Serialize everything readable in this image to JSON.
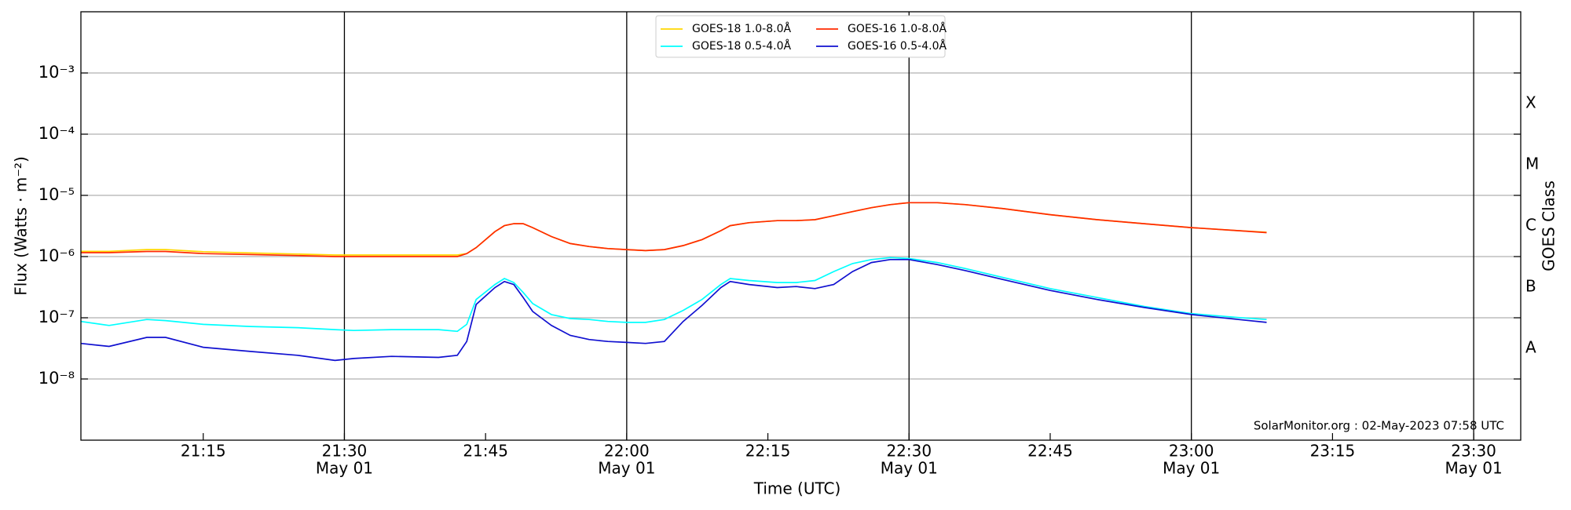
{
  "chart_data": {
    "type": "line",
    "y_label": "Flux (Watts · m⁻²)",
    "x_label": "Time (UTC)",
    "y2_label": "GOES Class",
    "annotation": "SolarMonitor.org : 02-May-2023 07:58 UTC",
    "log_y": true,
    "grid": true,
    "legend_position": "top-center",
    "classes": [
      "A",
      "B",
      "C",
      "M",
      "X"
    ],
    "xlim": [
      "21:02",
      "23:35"
    ],
    "ylim": [
      1e-09,
      0.01
    ],
    "xticks": [
      "21:15",
      "21:30",
      "21:45",
      "22:00",
      "22:15",
      "22:30",
      "22:45",
      "23:00",
      "23:15",
      "23:30"
    ],
    "xtick_dates": [
      null,
      "May 01",
      null,
      "May 01",
      null,
      "May 01",
      null,
      "May 01",
      null,
      "May 01"
    ],
    "yticks": [
      {
        "value": 1e-08,
        "label": "10⁻⁸"
      },
      {
        "value": 1e-07,
        "label": "10⁻⁷"
      },
      {
        "value": 1e-06,
        "label": "10⁻⁶"
      },
      {
        "value": 1e-05,
        "label": "10⁻⁵"
      },
      {
        "value": 0.0001,
        "label": "10⁻⁴"
      },
      {
        "value": 0.001,
        "label": "10⁻³"
      }
    ],
    "x": [
      "21:02",
      "21:05",
      "21:09",
      "21:11",
      "21:15",
      "21:20",
      "21:25",
      "21:29",
      "21:31",
      "21:35",
      "21:40",
      "21:42",
      "21:43",
      "21:44",
      "21:46",
      "21:47",
      "21:48",
      "21:49",
      "21:50",
      "21:52",
      "21:54",
      "21:56",
      "21:58",
      "22:00",
      "22:02",
      "22:04",
      "22:06",
      "22:08",
      "22:10",
      "22:11",
      "22:13",
      "22:16",
      "22:18",
      "22:20",
      "22:22",
      "22:24",
      "22:26",
      "22:28",
      "22:30",
      "22:33",
      "22:36",
      "22:40",
      "22:45",
      "22:50",
      "22:55",
      "23:00",
      "23:05",
      "23:08"
    ],
    "series": [
      {
        "name": "GOES-18 1.0-8.0Å",
        "color": "#ffd700",
        "values": [
          1.22e-06,
          1.22e-06,
          1.3e-06,
          1.3e-06,
          1.2e-06,
          1.15e-06,
          1.1e-06,
          1.06e-06,
          1.06e-06,
          1.06e-06,
          1.06e-06,
          1.06e-06,
          1.12e-06,
          1.4e-06,
          2.56e-06,
          3.2e-06,
          3.45e-06,
          3.45e-06,
          2.97e-06,
          2.12e-06,
          1.63e-06,
          1.46e-06,
          1.35e-06,
          1.3e-06,
          1.25e-06,
          1.3e-06,
          1.51e-06,
          1.89e-06,
          2.65e-06,
          3.2e-06,
          3.58e-06,
          3.86e-06,
          3.86e-06,
          4e-06,
          4.66e-06,
          5.42e-06,
          6.3e-06,
          7.06e-06,
          7.6e-06,
          7.6e-06,
          7.06e-06,
          6.07e-06,
          4.84e-06,
          4e-06,
          3.45e-06,
          2.97e-06,
          2.65e-06,
          2.5e-06
        ]
      },
      {
        "name": "GOES-18 0.5-4.0Å",
        "color": "#00ffff",
        "values": [
          8.7e-08,
          7.49e-08,
          9.38e-08,
          9e-08,
          7.8e-08,
          7.2e-08,
          6.9e-08,
          6.4e-08,
          6.2e-08,
          6.4e-08,
          6.4e-08,
          6e-08,
          7.8e-08,
          1.99e-07,
          3.5e-07,
          4.37e-07,
          3.76e-07,
          2.59e-07,
          1.71e-07,
          1.13e-07,
          9.7e-08,
          9.38e-08,
          8.7e-08,
          8.4e-08,
          8.4e-08,
          9.38e-08,
          1.32e-07,
          1.99e-07,
          3.5e-07,
          4.37e-07,
          4.06e-07,
          3.76e-07,
          3.76e-07,
          4.06e-07,
          5.69e-07,
          7.69e-07,
          8.93e-07,
          9.63e-07,
          9.28e-07,
          7.98e-07,
          6.36e-07,
          4.54e-07,
          3e-07,
          2.14e-07,
          1.53e-07,
          1.17e-07,
          1.01e-07,
          9.38e-08
        ]
      },
      {
        "name": "GOES-16 1.0-8.0Å",
        "color": "#ff2a00",
        "values": [
          1.16e-06,
          1.16e-06,
          1.21e-06,
          1.21e-06,
          1.12e-06,
          1.08e-06,
          1.04e-06,
          1e-06,
          1e-06,
          1e-06,
          1e-06,
          1e-06,
          1.12e-06,
          1.4e-06,
          2.56e-06,
          3.2e-06,
          3.45e-06,
          3.45e-06,
          2.97e-06,
          2.12e-06,
          1.63e-06,
          1.46e-06,
          1.35e-06,
          1.3e-06,
          1.25e-06,
          1.3e-06,
          1.51e-06,
          1.89e-06,
          2.65e-06,
          3.2e-06,
          3.58e-06,
          3.86e-06,
          3.86e-06,
          4e-06,
          4.66e-06,
          5.42e-06,
          6.3e-06,
          7.06e-06,
          7.6e-06,
          7.6e-06,
          7.06e-06,
          6.07e-06,
          4.84e-06,
          4e-06,
          3.45e-06,
          2.97e-06,
          2.65e-06,
          2.46e-06
        ]
      },
      {
        "name": "GOES-16 0.5-4.0Å",
        "color": "#1010d0",
        "values": [
          3.81e-08,
          3.4e-08,
          4.78e-08,
          4.78e-08,
          3.3e-08,
          2.82e-08,
          2.44e-08,
          2.01e-08,
          2.16e-08,
          2.34e-08,
          2.25e-08,
          2.44e-08,
          4.1e-08,
          1.65e-07,
          3.12e-07,
          3.91e-07,
          3.5e-07,
          2.14e-07,
          1.27e-07,
          7.49e-08,
          5.14e-08,
          4.42e-08,
          4.1e-08,
          3.96e-08,
          3.81e-08,
          4.1e-08,
          8.7e-08,
          1.59e-07,
          3.12e-07,
          3.91e-07,
          3.5e-07,
          3.12e-07,
          3.24e-07,
          3e-07,
          3.5e-07,
          5.69e-07,
          7.98e-07,
          8.93e-07,
          8.93e-07,
          7.41e-07,
          5.9e-07,
          4.21e-07,
          2.79e-07,
          1.99e-07,
          1.47e-07,
          1.13e-07,
          9.38e-08,
          8.4e-08
        ]
      }
    ]
  }
}
